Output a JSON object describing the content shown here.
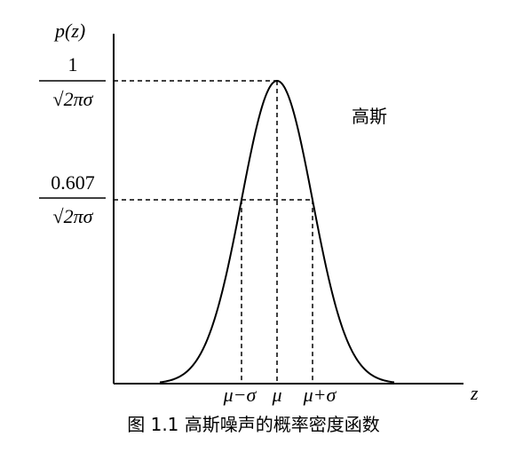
{
  "chart_data": {
    "type": "line",
    "ylabel": "p(z)",
    "xlabel": "z",
    "series": [
      {
        "name": "高斯",
        "function": "gaussian",
        "mean": "μ",
        "std": "σ"
      }
    ],
    "y_ticks": [
      {
        "numerator": "1",
        "denominator": "√2πσ",
        "relative_value": 1.0
      },
      {
        "numerator": "0.607",
        "denominator": "√2πσ",
        "relative_value": 0.607
      }
    ],
    "x_ticks": [
      {
        "label": "μ−σ",
        "offset_sigma": -1
      },
      {
        "label": "μ",
        "offset_sigma": 0
      },
      {
        "label": "μ+σ",
        "offset_sigma": 1
      }
    ],
    "x_range_sigma": [
      -3.3,
      3.3
    ],
    "grid": false
  },
  "caption": "图 1.1  高斯噪声的概率密度函数"
}
